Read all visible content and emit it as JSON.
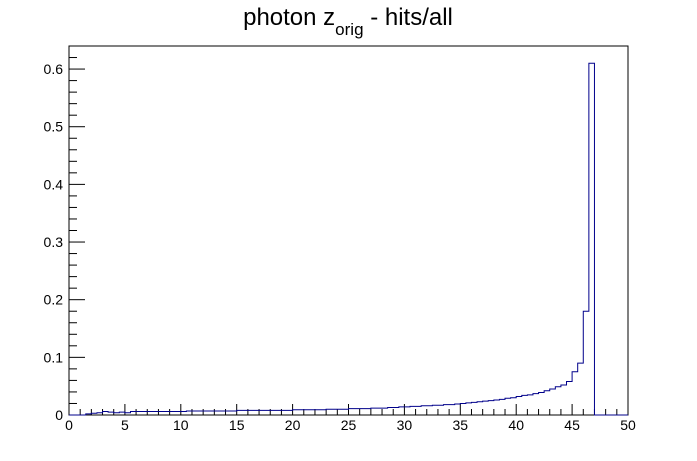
{
  "chart_data": {
    "type": "histogram",
    "title_main": "photon z",
    "title_sub": "orig",
    "title_rest": " - hits/all",
    "xlabel": "",
    "ylabel": "",
    "xlim": [
      0,
      50
    ],
    "ylim": [
      0,
      0.64
    ],
    "grid": false,
    "bin_width": 0.5,
    "x_start": 0,
    "x_ticks": [
      0,
      5,
      10,
      15,
      20,
      25,
      30,
      35,
      40,
      45,
      50
    ],
    "x_tick_labels": [
      "0",
      "5",
      "10",
      "15",
      "20",
      "25",
      "30",
      "35",
      "40",
      "45",
      "50"
    ],
    "y_ticks": [
      0,
      0.1,
      0.2,
      0.3,
      0.4,
      0.5,
      0.6
    ],
    "y_tick_labels": [
      "0",
      "0.1",
      "0.2",
      "0.3",
      "0.4",
      "0.5",
      "0.6"
    ],
    "line_color": "#00008b",
    "values": [
      0,
      0,
      0,
      0.002,
      0.003,
      0.004,
      0.006,
      0.005,
      0.004,
      0.005,
      0.004,
      0.006,
      0.006,
      0.006,
      0.006,
      0.006,
      0.006,
      0.006,
      0.006,
      0.006,
      0.006,
      0.007,
      0.007,
      0.007,
      0.007,
      0.007,
      0.007,
      0.007,
      0.007,
      0.007,
      0.008,
      0.008,
      0.008,
      0.008,
      0.008,
      0.008,
      0.008,
      0.008,
      0.008,
      0.008,
      0.009,
      0.009,
      0.009,
      0.009,
      0.009,
      0.009,
      0.01,
      0.01,
      0.01,
      0.01,
      0.011,
      0.011,
      0.011,
      0.011,
      0.012,
      0.012,
      0.012,
      0.013,
      0.013,
      0.014,
      0.014,
      0.015,
      0.015,
      0.016,
      0.016,
      0.017,
      0.017,
      0.018,
      0.018,
      0.019,
      0.02,
      0.021,
      0.022,
      0.023,
      0.024,
      0.025,
      0.026,
      0.027,
      0.029,
      0.03,
      0.032,
      0.034,
      0.035,
      0.037,
      0.039,
      0.042,
      0.045,
      0.049,
      0.052,
      0.058,
      0.075,
      0.09,
      0.18,
      0.61,
      0,
      0,
      0,
      0,
      0,
      0
    ]
  }
}
